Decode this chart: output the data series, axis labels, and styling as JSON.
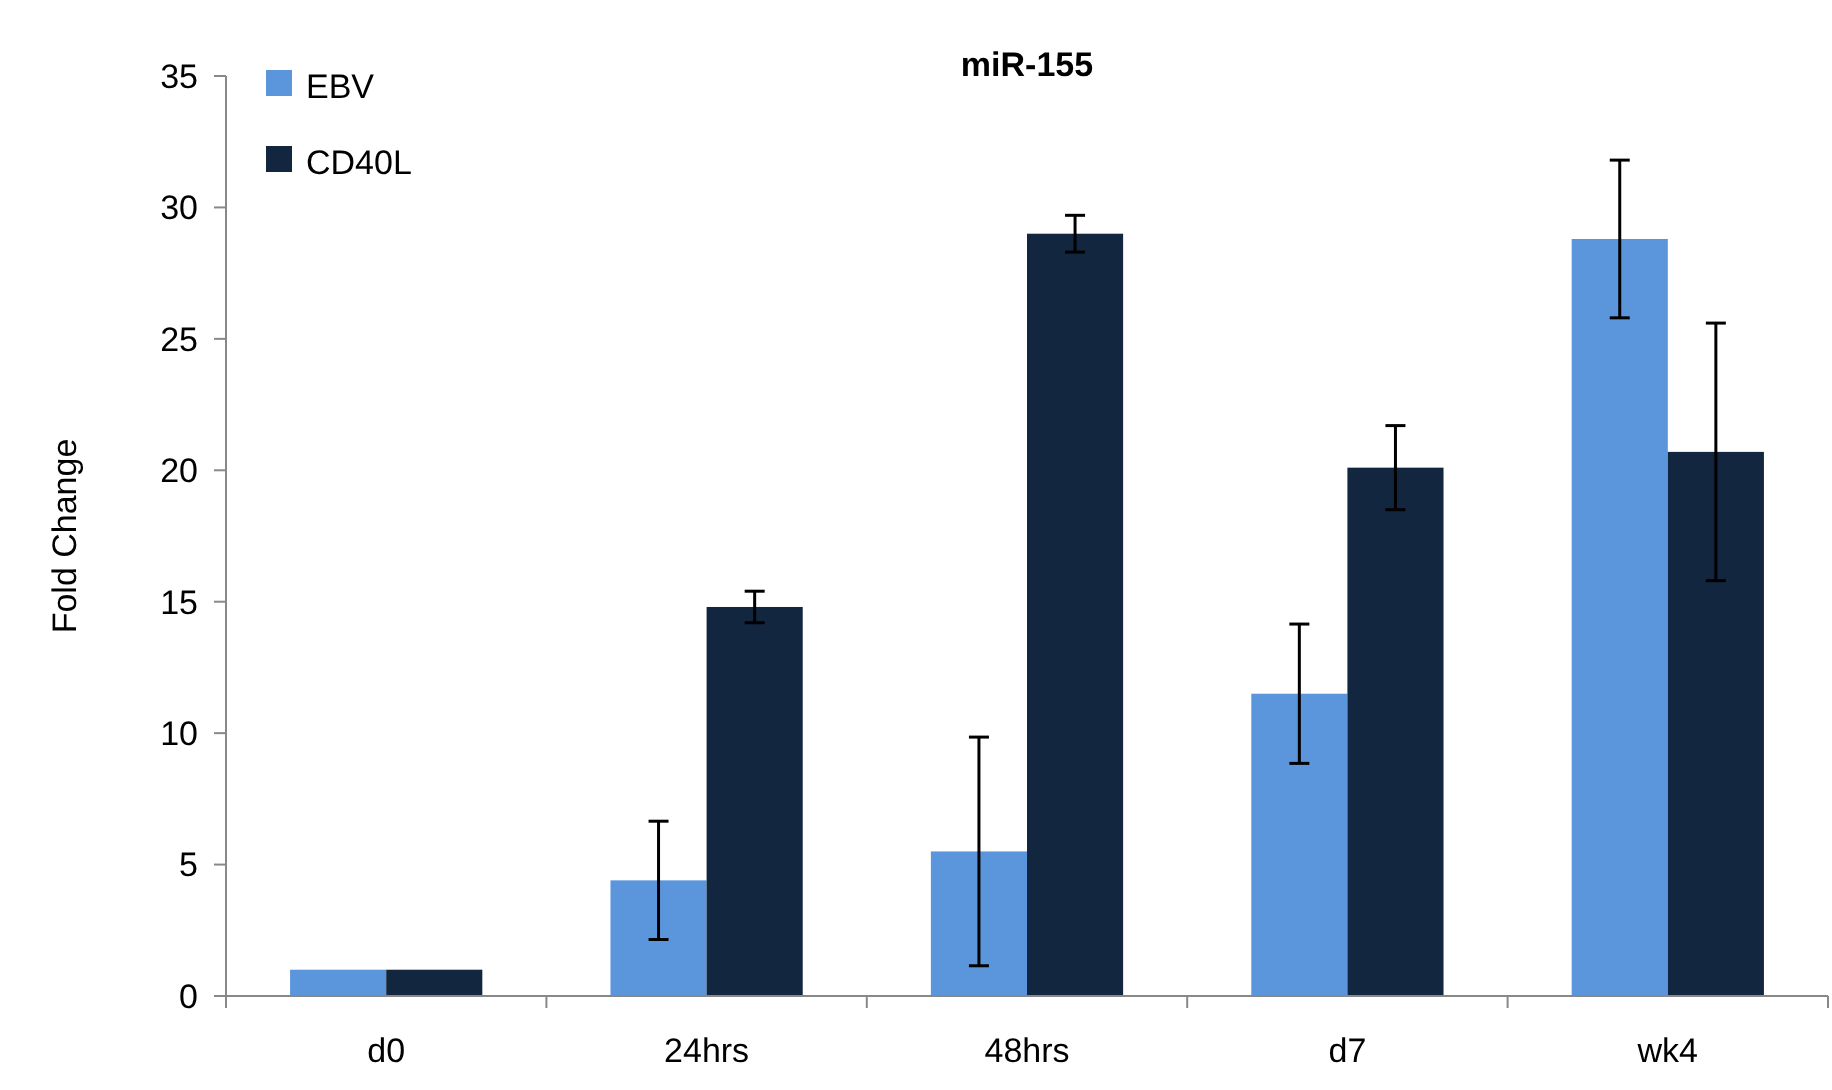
{
  "chart_data": {
    "type": "bar",
    "title": "miR-155",
    "ylabel": "Fold Change",
    "categories": [
      "d0",
      "24hrs",
      "48hrs",
      "d7",
      "wk4"
    ],
    "series": [
      {
        "name": "EBV",
        "color": "#5b96dc",
        "values": [
          1,
          4.4,
          5.5,
          11.5,
          28.8
        ],
        "errors": [
          null,
          2.25,
          4.35,
          2.65,
          3
        ]
      },
      {
        "name": "CD40L",
        "color": "#13263f",
        "values": [
          1,
          14.8,
          29,
          20.1,
          20.7
        ],
        "errors": [
          null,
          0.6,
          0.7,
          1.6,
          4.9
        ]
      }
    ],
    "ylim": [
      0,
      35
    ],
    "yticks": [
      0,
      5,
      10,
      15,
      20,
      25,
      30,
      35
    ],
    "grid": false,
    "legend": "top left"
  }
}
